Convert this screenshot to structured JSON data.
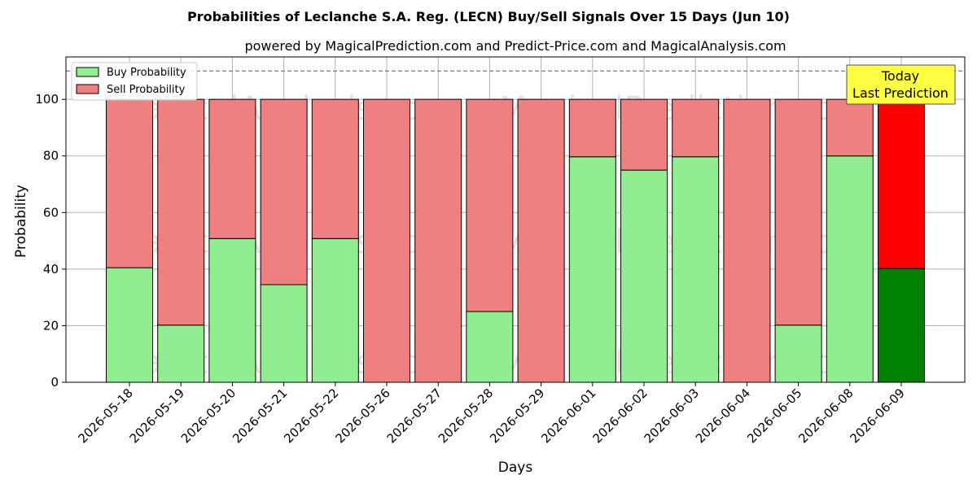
{
  "chart_data": {
    "type": "bar",
    "stacked": true,
    "title": "Probabilities of Leclanche S.A. Reg. (LECN) Buy/Sell Signals Over 15 Days (Jun 10)",
    "subtitle": "powered by MagicalPrediction.com and Predict-Price.com and MagicalAnalysis.com",
    "xlabel": "Days",
    "ylabel": "Probability",
    "ylim": [
      0,
      115
    ],
    "yticks": [
      0,
      20,
      40,
      60,
      80,
      100
    ],
    "reference_line": 110,
    "grid": true,
    "legend_position": "top-left",
    "categories": [
      "2026-05-18",
      "2026-05-19",
      "2026-05-20",
      "2026-05-21",
      "2026-05-22",
      "2026-05-26",
      "2026-05-27",
      "2026-05-28",
      "2026-05-29",
      "2026-06-01",
      "2026-06-02",
      "2026-06-03",
      "2026-06-04",
      "2026-06-05",
      "2026-06-08",
      "2026-06-09"
    ],
    "series": [
      {
        "name": "Buy Probability",
        "color": "#90ee90",
        "values": [
          40.5,
          20.2,
          50.8,
          34.5,
          50.8,
          0,
          0,
          25.0,
          0,
          79.7,
          75.0,
          79.7,
          0,
          20.2,
          80.0,
          40.2
        ]
      },
      {
        "name": "Sell Probability",
        "color": "#f08080",
        "values": [
          59.5,
          79.8,
          49.2,
          65.5,
          49.2,
          100,
          100,
          75.0,
          100,
          20.3,
          25.0,
          20.3,
          100,
          79.8,
          20.0,
          59.8
        ]
      }
    ],
    "highlight": {
      "index": 15,
      "buy_color": "#008000",
      "sell_color": "#ff0000"
    },
    "annotation": {
      "text_line1": "Today",
      "text_line2": "Last Prediction",
      "background": "#ffff44"
    },
    "watermarks": [
      "MagicalAnalysis.com",
      "MagicalPrediction.com"
    ]
  }
}
